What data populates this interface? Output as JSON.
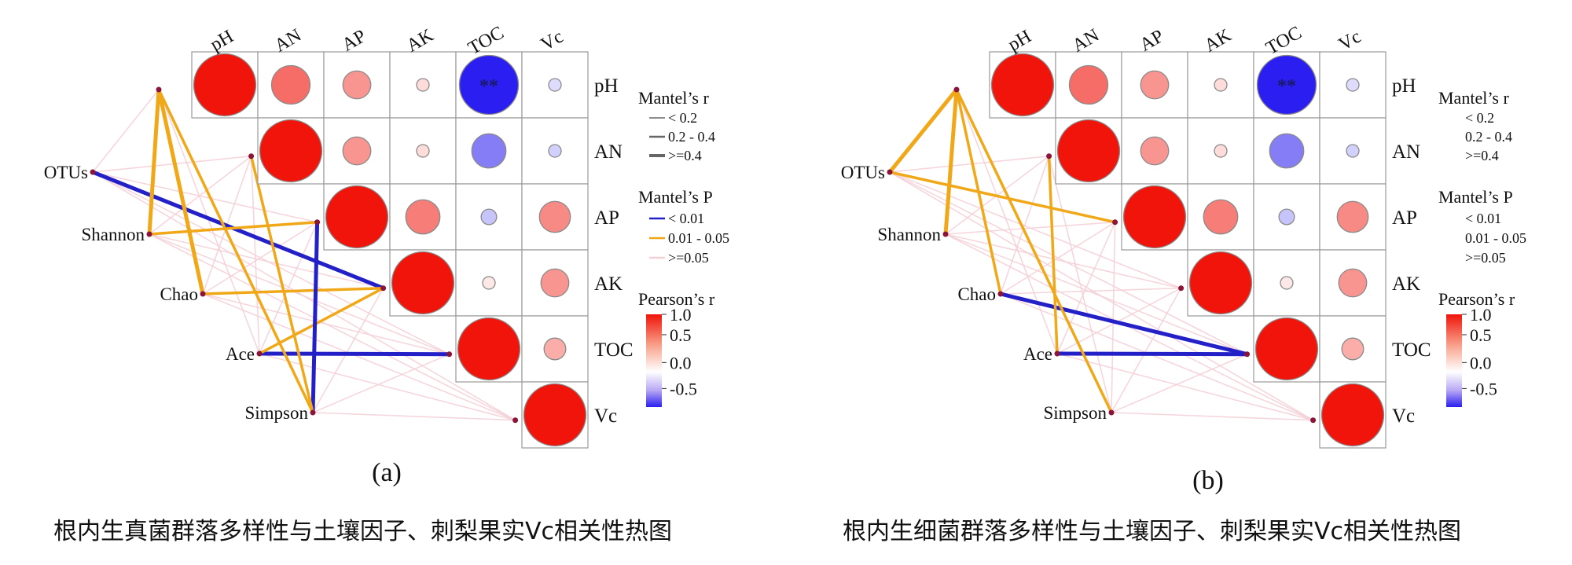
{
  "figure": {
    "panels": [
      {
        "letter": "(a)",
        "caption": "根内生真菌群落多样性与土壤因子、刺梨果实Vc相关性热图",
        "legend": {
          "mantel_r_title": "Mantel’s r",
          "mantel_r_items": [
            "< 0.2",
            "0.2 - 0.4",
            ">=0.4"
          ],
          "mantel_p_title": "Mantel’s P",
          "mantel_p_items": [
            "< 0.01",
            "0.01 - 0.05",
            ">=0.05"
          ],
          "pearson_title": "Pearson’s r",
          "pearson_ticks": [
            "1.0",
            "0.5",
            "0.0",
            "-0.5"
          ]
        }
      },
      {
        "letter": "(b)",
        "caption": "根内生细菌群落多样性与土壤因子、刺梨果实Vc相关性热图",
        "legend": {
          "mantel_r_title": "Mantel’s r",
          "mantel_r_items": [
            "< 0.2",
            "0.2 - 0.4",
            ">=0.4"
          ],
          "mantel_p_title": "Mantel’s P",
          "mantel_p_items": [
            "< 0.01",
            "0.01 - 0.05",
            ">=0.05"
          ],
          "pearson_title": "Pearson’s r",
          "pearson_ticks": [
            "1.0",
            "0.5",
            "0.0",
            "-0.5"
          ]
        }
      }
    ],
    "colors": {
      "positive": "#f0140a",
      "neutral": "#ffffff",
      "negative": "#2b1ef0",
      "p_lt_001": "#2320c8",
      "p_001_005": "#f0a818",
      "p_ge_005": "#f4cfd8",
      "node": "#8b1538",
      "grid": "#9a9a9a"
    }
  },
  "chart_data": [
    {
      "type": "heatmap",
      "variables": [
        "pH",
        "AN",
        "AP",
        "AK",
        "TOC",
        "Vc"
      ],
      "correlation_matrix_upper": [
        [
          1.0,
          0.62,
          0.45,
          0.15,
          -0.95,
          -0.15
        ],
        [
          null,
          1.0,
          0.45,
          0.15,
          -0.55,
          -0.2
        ],
        [
          null,
          null,
          1.0,
          0.55,
          -0.25,
          0.5
        ],
        [
          null,
          null,
          null,
          1.0,
          0.1,
          0.45
        ],
        [
          null,
          null,
          null,
          null,
          1.0,
          0.35
        ],
        [
          null,
          null,
          null,
          null,
          null,
          1.0
        ]
      ],
      "significance_upper": [
        [
          "",
          "",
          "",
          "",
          "**",
          ""
        ],
        [
          null,
          "",
          "",
          "",
          "",
          ""
        ],
        [
          null,
          null,
          "",
          "",
          "",
          ""
        ],
        [
          null,
          null,
          null,
          "",
          "",
          ""
        ],
        [
          null,
          null,
          null,
          null,
          "",
          ""
        ],
        [
          null,
          null,
          null,
          null,
          null,
          ""
        ]
      ],
      "color_scale_range": [
        -0.5,
        1.0
      ],
      "mantel_groups": [
        "OTUs",
        "Shannon",
        "Chao",
        "Ace",
        "Simpson"
      ],
      "mantel_links": [
        {
          "group": "OTUs",
          "factor": "AK",
          "r_class": ">=0.4",
          "p_class": "< 0.01"
        },
        {
          "group": "OTUs",
          "factor": "pH",
          "r_class": "< 0.2",
          "p_class": ">=0.05"
        },
        {
          "group": "OTUs",
          "factor": "AN",
          "r_class": "< 0.2",
          "p_class": ">=0.05"
        },
        {
          "group": "OTUs",
          "factor": "AP",
          "r_class": "< 0.2",
          "p_class": ">=0.05"
        },
        {
          "group": "OTUs",
          "factor": "TOC",
          "r_class": "< 0.2",
          "p_class": ">=0.05"
        },
        {
          "group": "OTUs",
          "factor": "Vc",
          "r_class": "< 0.2",
          "p_class": ">=0.05"
        },
        {
          "group": "Shannon",
          "factor": "pH",
          "r_class": ">=0.4",
          "p_class": "0.01 - 0.05"
        },
        {
          "group": "Shannon",
          "factor": "AP",
          "r_class": "0.2 - 0.4",
          "p_class": "0.01 - 0.05"
        },
        {
          "group": "Shannon",
          "factor": "AN",
          "r_class": "< 0.2",
          "p_class": ">=0.05"
        },
        {
          "group": "Shannon",
          "factor": "AK",
          "r_class": "< 0.2",
          "p_class": ">=0.05"
        },
        {
          "group": "Shannon",
          "factor": "TOC",
          "r_class": "< 0.2",
          "p_class": ">=0.05"
        },
        {
          "group": "Shannon",
          "factor": "Vc",
          "r_class": "< 0.2",
          "p_class": ">=0.05"
        },
        {
          "group": "Chao",
          "factor": "pH",
          "r_class": ">=0.4",
          "p_class": "0.01 - 0.05"
        },
        {
          "group": "Chao",
          "factor": "AK",
          "r_class": "0.2 - 0.4",
          "p_class": "0.01 - 0.05"
        },
        {
          "group": "Chao",
          "factor": "AN",
          "r_class": "< 0.2",
          "p_class": ">=0.05"
        },
        {
          "group": "Chao",
          "factor": "AP",
          "r_class": "< 0.2",
          "p_class": ">=0.05"
        },
        {
          "group": "Chao",
          "factor": "TOC",
          "r_class": "< 0.2",
          "p_class": ">=0.05"
        },
        {
          "group": "Chao",
          "factor": "Vc",
          "r_class": "< 0.2",
          "p_class": ">=0.05"
        },
        {
          "group": "Ace",
          "factor": "TOC",
          "r_class": ">=0.4",
          "p_class": "< 0.01"
        },
        {
          "group": "Ace",
          "factor": "AK",
          "r_class": "0.2 - 0.4",
          "p_class": "0.01 - 0.05"
        },
        {
          "group": "Ace",
          "factor": "pH",
          "r_class": "< 0.2",
          "p_class": ">=0.05"
        },
        {
          "group": "Ace",
          "factor": "AN",
          "r_class": "< 0.2",
          "p_class": ">=0.05"
        },
        {
          "group": "Ace",
          "factor": "AP",
          "r_class": "< 0.2",
          "p_class": ">=0.05"
        },
        {
          "group": "Ace",
          "factor": "Vc",
          "r_class": "< 0.2",
          "p_class": ">=0.05"
        },
        {
          "group": "Simpson",
          "factor": "AP",
          "r_class": ">=0.4",
          "p_class": "< 0.01"
        },
        {
          "group": "Simpson",
          "factor": "pH",
          "r_class": "0.2 - 0.4",
          "p_class": "0.01 - 0.05"
        },
        {
          "group": "Simpson",
          "factor": "AN",
          "r_class": "0.2 - 0.4",
          "p_class": "0.01 - 0.05"
        },
        {
          "group": "Simpson",
          "factor": "AK",
          "r_class": "< 0.2",
          "p_class": ">=0.05"
        },
        {
          "group": "Simpson",
          "factor": "TOC",
          "r_class": "< 0.2",
          "p_class": ">=0.05"
        },
        {
          "group": "Simpson",
          "factor": "Vc",
          "r_class": "< 0.2",
          "p_class": ">=0.05"
        }
      ]
    },
    {
      "type": "heatmap",
      "variables": [
        "pH",
        "AN",
        "AP",
        "AK",
        "TOC",
        "Vc"
      ],
      "correlation_matrix_upper": [
        [
          1.0,
          0.62,
          0.45,
          0.15,
          -0.95,
          -0.15
        ],
        [
          null,
          1.0,
          0.45,
          0.15,
          -0.55,
          -0.2
        ],
        [
          null,
          null,
          1.0,
          0.55,
          -0.25,
          0.5
        ],
        [
          null,
          null,
          null,
          1.0,
          0.1,
          0.45
        ],
        [
          null,
          null,
          null,
          null,
          1.0,
          0.35
        ],
        [
          null,
          null,
          null,
          null,
          null,
          1.0
        ]
      ],
      "significance_upper": [
        [
          "",
          "",
          "",
          "",
          "**",
          ""
        ],
        [
          null,
          "",
          "",
          "",
          "",
          ""
        ],
        [
          null,
          null,
          "",
          "",
          "",
          ""
        ],
        [
          null,
          null,
          null,
          "",
          "",
          ""
        ],
        [
          null,
          null,
          null,
          null,
          "",
          ""
        ],
        [
          null,
          null,
          null,
          null,
          null,
          ""
        ]
      ],
      "color_scale_range": [
        -0.5,
        1.0
      ],
      "mantel_groups": [
        "OTUs",
        "Shannon",
        "Chao",
        "Ace",
        "Simpson"
      ],
      "mantel_links": [
        {
          "group": "OTUs",
          "factor": "pH",
          "r_class": ">=0.4",
          "p_class": "0.01 - 0.05"
        },
        {
          "group": "OTUs",
          "factor": "AP",
          "r_class": "0.2 - 0.4",
          "p_class": "0.01 - 0.05"
        },
        {
          "group": "OTUs",
          "factor": "AN",
          "r_class": "< 0.2",
          "p_class": ">=0.05"
        },
        {
          "group": "OTUs",
          "factor": "AK",
          "r_class": "< 0.2",
          "p_class": ">=0.05"
        },
        {
          "group": "OTUs",
          "factor": "TOC",
          "r_class": "< 0.2",
          "p_class": ">=0.05"
        },
        {
          "group": "OTUs",
          "factor": "Vc",
          "r_class": "< 0.2",
          "p_class": ">=0.05"
        },
        {
          "group": "Shannon",
          "factor": "pH",
          "r_class": ">=0.4",
          "p_class": "0.01 - 0.05"
        },
        {
          "group": "Shannon",
          "factor": "AN",
          "r_class": "< 0.2",
          "p_class": ">=0.05"
        },
        {
          "group": "Shannon",
          "factor": "AP",
          "r_class": "< 0.2",
          "p_class": ">=0.05"
        },
        {
          "group": "Shannon",
          "factor": "AK",
          "r_class": "< 0.2",
          "p_class": ">=0.05"
        },
        {
          "group": "Shannon",
          "factor": "TOC",
          "r_class": "< 0.2",
          "p_class": ">=0.05"
        },
        {
          "group": "Shannon",
          "factor": "Vc",
          "r_class": "< 0.2",
          "p_class": ">=0.05"
        },
        {
          "group": "Chao",
          "factor": "TOC",
          "r_class": ">=0.4",
          "p_class": "< 0.01"
        },
        {
          "group": "Chao",
          "factor": "pH",
          "r_class": "0.2 - 0.4",
          "p_class": "0.01 - 0.05"
        },
        {
          "group": "Chao",
          "factor": "AN",
          "r_class": "< 0.2",
          "p_class": ">=0.05"
        },
        {
          "group": "Chao",
          "factor": "AP",
          "r_class": "< 0.2",
          "p_class": ">=0.05"
        },
        {
          "group": "Chao",
          "factor": "AK",
          "r_class": "< 0.2",
          "p_class": ">=0.05"
        },
        {
          "group": "Chao",
          "factor": "Vc",
          "r_class": "< 0.2",
          "p_class": ">=0.05"
        },
        {
          "group": "Ace",
          "factor": "TOC",
          "r_class": ">=0.4",
          "p_class": "< 0.01"
        },
        {
          "group": "Ace",
          "factor": "AN",
          "r_class": "0.2 - 0.4",
          "p_class": "0.01 - 0.05"
        },
        {
          "group": "Ace",
          "factor": "pH",
          "r_class": "< 0.2",
          "p_class": ">=0.05"
        },
        {
          "group": "Ace",
          "factor": "AP",
          "r_class": "< 0.2",
          "p_class": ">=0.05"
        },
        {
          "group": "Ace",
          "factor": "AK",
          "r_class": "< 0.2",
          "p_class": ">=0.05"
        },
        {
          "group": "Ace",
          "factor": "Vc",
          "r_class": "< 0.2",
          "p_class": ">=0.05"
        },
        {
          "group": "Simpson",
          "factor": "pH",
          "r_class": "0.2 - 0.4",
          "p_class": "0.01 - 0.05"
        },
        {
          "group": "Simpson",
          "factor": "AN",
          "r_class": "< 0.2",
          "p_class": ">=0.05"
        },
        {
          "group": "Simpson",
          "factor": "AP",
          "r_class": "< 0.2",
          "p_class": ">=0.05"
        },
        {
          "group": "Simpson",
          "factor": "AK",
          "r_class": "< 0.2",
          "p_class": ">=0.05"
        },
        {
          "group": "Simpson",
          "factor": "TOC",
          "r_class": "< 0.2",
          "p_class": ">=0.05"
        },
        {
          "group": "Simpson",
          "factor": "Vc",
          "r_class": "< 0.2",
          "p_class": ">=0.05"
        }
      ]
    }
  ]
}
